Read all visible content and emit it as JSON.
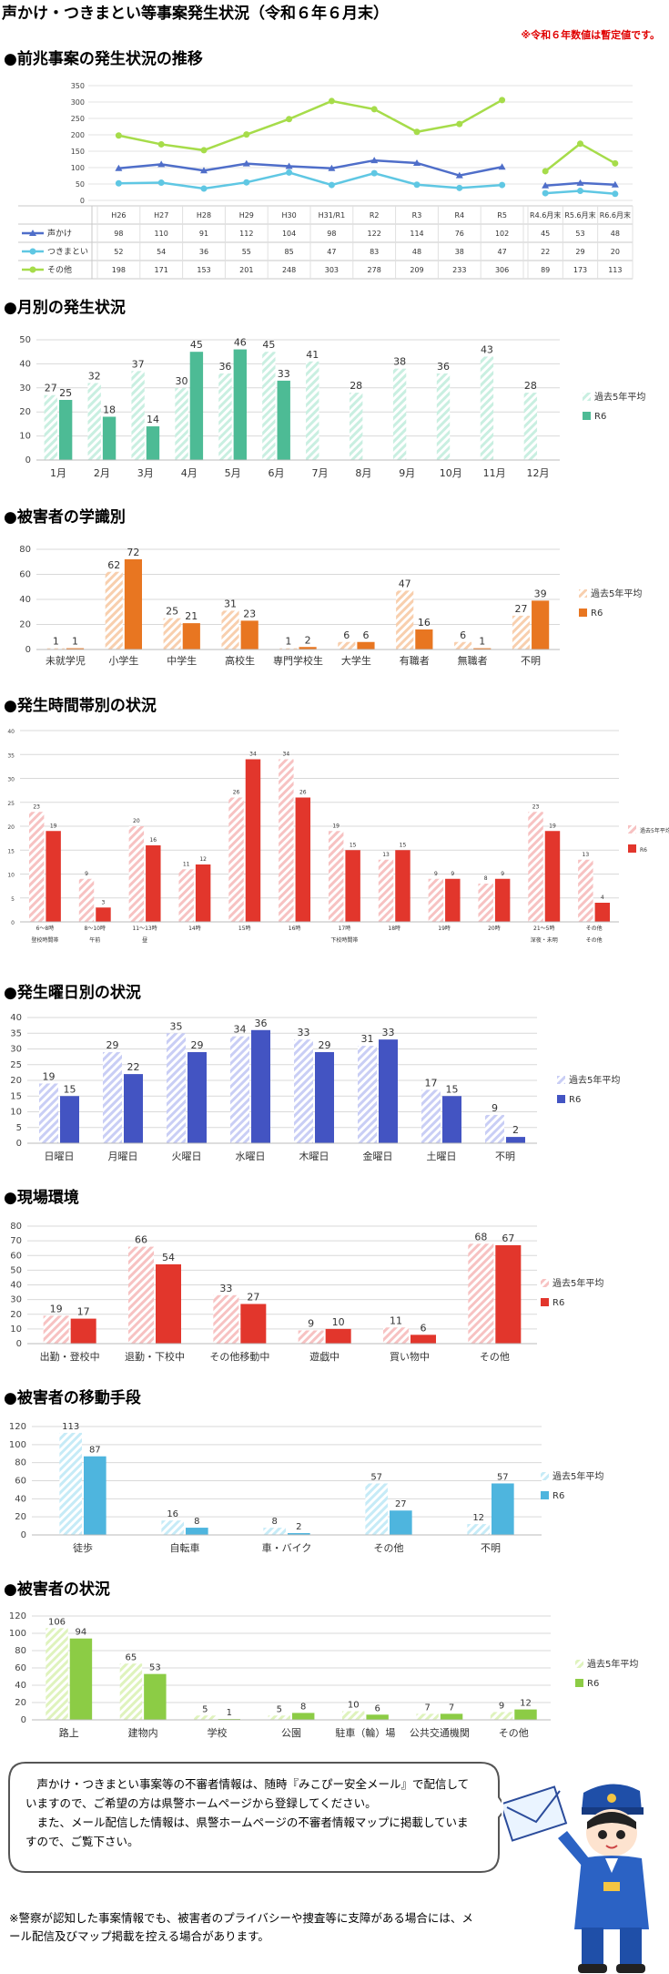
{
  "title": "声かけ・つきまとい等事案発生状況（令和６年６月末）",
  "note": "※令和６年数値は暫定値です。",
  "sections": {
    "s1": "●前兆事案の発生状況の推移",
    "s2": "●月別の発生状況",
    "s3": "●被害者の学識別",
    "s4": "●発生時間帯別の状況",
    "s5": "●発生曜日別の状況",
    "s6": "●現場環境",
    "s7": "●被害者の移動手段",
    "s8": "●被害者の状況"
  },
  "callout": {
    "text1": "声かけ・つきまとい事案等の不審者情報は、随時『みこぴー安全メール』で配信していますので、ご希望の方は県警ホームページから登録してください。",
    "text2": "また、メール配信した情報は、県警ホームページの不審者情報マップに掲載していますので、ご覧下さい。"
  },
  "footnote": "※警察が認知した事案情報でも、被害者のプライバシーや捜査等に支障がある場合には、メール配信及びマップ掲載を控える場合があります。",
  "colors": {
    "koekake": "#4f6ec9",
    "tsukimatoi": "#5fc7e3",
    "sonota": "#a6dc4a",
    "teal_light": "#c9efe1",
    "teal": "#4dbb95",
    "orange_light": "#f8cfae",
    "orange": "#e87621",
    "red_light": "#f7c2c2",
    "red": "#e2362c",
    "blue_light": "#c9cef5",
    "blue": "#4354c2",
    "sky_light": "#c6ebf7",
    "sky": "#4eb5de",
    "green_light": "#dff3bd",
    "green": "#8ccc45"
  },
  "chart_data": [
    {
      "id": "trend",
      "type": "line",
      "categories": [
        "H26",
        "H27",
        "H28",
        "H29",
        "H30",
        "H31/R1",
        "R2",
        "R3",
        "R4",
        "R5"
      ],
      "categories2": [
        "R4.6月末",
        "R5.6月末",
        "R6.6月末"
      ],
      "ylim": [
        0,
        350
      ],
      "yticks": [
        0,
        50,
        100,
        150,
        200,
        250,
        300,
        350
      ],
      "series": [
        {
          "name": "声かけ",
          "values": [
            98,
            110,
            91,
            112,
            104,
            98,
            122,
            114,
            76,
            102
          ],
          "values2": [
            45,
            53,
            48
          ]
        },
        {
          "name": "つきまとい",
          "values": [
            52,
            54,
            36,
            55,
            85,
            47,
            83,
            48,
            38,
            47
          ],
          "values2": [
            22,
            29,
            20
          ]
        },
        {
          "name": "その他",
          "values": [
            198,
            171,
            153,
            201,
            248,
            303,
            278,
            209,
            233,
            306
          ],
          "values2": [
            89,
            173,
            113
          ]
        }
      ]
    },
    {
      "id": "monthly",
      "type": "bar",
      "categories": [
        "1月",
        "2月",
        "3月",
        "4月",
        "5月",
        "6月",
        "7月",
        "8月",
        "9月",
        "10月",
        "11月",
        "12月"
      ],
      "ylim": [
        0,
        50
      ],
      "yticks": [
        0,
        10,
        20,
        30,
        40,
        50
      ],
      "series": [
        {
          "name": "過去5年平均",
          "values": [
            27,
            32,
            37,
            30,
            36,
            45,
            41,
            28,
            38,
            36,
            43,
            28
          ]
        },
        {
          "name": "R6",
          "values": [
            25,
            18,
            14,
            45,
            46,
            33,
            null,
            null,
            null,
            null,
            null,
            null
          ]
        }
      ]
    },
    {
      "id": "school",
      "type": "bar",
      "categories": [
        "未就学児",
        "小学生",
        "中学生",
        "高校生",
        "専門学校生",
        "大学生",
        "有職者",
        "無職者",
        "不明"
      ],
      "ylim": [
        0,
        80
      ],
      "yticks": [
        0,
        20,
        40,
        60,
        80
      ],
      "series": [
        {
          "name": "過去5年平均",
          "values": [
            1,
            62,
            25,
            31,
            1,
            6,
            47,
            6,
            27
          ]
        },
        {
          "name": "R6",
          "values": [
            1,
            72,
            21,
            23,
            2,
            6,
            16,
            1,
            39
          ]
        }
      ]
    },
    {
      "id": "time",
      "type": "bar",
      "categories": [
        "6～8時",
        "8～10時",
        "11～13時",
        "14時",
        "15時",
        "16時",
        "17時",
        "18時",
        "19時",
        "20時",
        "21～5時",
        "その他"
      ],
      "groups": [
        "登校時間帯",
        "午前",
        "昼",
        "",
        "",
        "",
        "下校時間帯",
        "",
        "",
        "",
        "深夜・未明",
        "その他"
      ],
      "ylim": [
        0,
        40
      ],
      "yticks": [
        0,
        5,
        10,
        15,
        20,
        25,
        30,
        35,
        40
      ],
      "series": [
        {
          "name": "過去5年平均",
          "values": [
            23,
            9,
            20,
            11,
            26,
            34,
            19,
            13,
            9,
            8,
            23,
            13
          ]
        },
        {
          "name": "R6",
          "values": [
            19,
            3,
            16,
            12,
            34,
            26,
            15,
            15,
            9,
            9,
            19,
            4
          ]
        }
      ]
    },
    {
      "id": "weekday",
      "type": "bar",
      "categories": [
        "日曜日",
        "月曜日",
        "火曜日",
        "水曜日",
        "木曜日",
        "金曜日",
        "土曜日",
        "不明"
      ],
      "ylim": [
        0,
        40
      ],
      "yticks": [
        0,
        5,
        10,
        15,
        20,
        25,
        30,
        35,
        40
      ],
      "series": [
        {
          "name": "過去5年平均",
          "values": [
            19,
            29,
            35,
            34,
            33,
            31,
            17,
            9
          ]
        },
        {
          "name": "R6",
          "values": [
            15,
            22,
            29,
            36,
            29,
            33,
            15,
            2
          ]
        }
      ]
    },
    {
      "id": "scene",
      "type": "bar",
      "categories": [
        "出勤・登校中",
        "退勤・下校中",
        "その他移動中",
        "遊戯中",
        "買い物中",
        "その他"
      ],
      "ylim": [
        0,
        80
      ],
      "yticks": [
        0,
        10,
        20,
        30,
        40,
        50,
        60,
        70,
        80
      ],
      "series": [
        {
          "name": "過去5年平均",
          "values": [
            19,
            66,
            33,
            9,
            11,
            68
          ]
        },
        {
          "name": "R6",
          "values": [
            17,
            54,
            27,
            10,
            6,
            67
          ]
        }
      ]
    },
    {
      "id": "transport",
      "type": "bar",
      "categories": [
        "徒歩",
        "自転車",
        "車・バイク",
        "その他",
        "不明"
      ],
      "ylim": [
        0,
        120
      ],
      "yticks": [
        0,
        20,
        40,
        60,
        80,
        100,
        120
      ],
      "series": [
        {
          "name": "過去5年平均",
          "values": [
            113,
            16,
            8,
            57,
            12
          ]
        },
        {
          "name": "R6",
          "values": [
            87,
            8,
            2,
            27,
            57
          ]
        }
      ]
    },
    {
      "id": "place",
      "type": "bar",
      "categories": [
        "路上",
        "建物内",
        "学校",
        "公園",
        "駐車（輪）場",
        "公共交通機関",
        "その他"
      ],
      "ylim": [
        0,
        120
      ],
      "yticks": [
        0,
        20,
        40,
        60,
        80,
        100,
        120
      ],
      "series": [
        {
          "name": "過去5年平均",
          "values": [
            106,
            65,
            5,
            5,
            10,
            7,
            9
          ]
        },
        {
          "name": "R6",
          "values": [
            94,
            53,
            1,
            8,
            6,
            7,
            12
          ]
        }
      ]
    }
  ]
}
